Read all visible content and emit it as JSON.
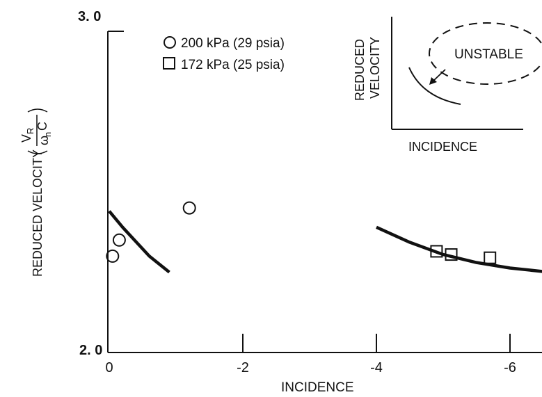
{
  "chart_data": {
    "type": "scatter",
    "xlabel": "INCIDENCE",
    "ylabel_text": "REDUCED VELOCITY",
    "ylabel_formula": {
      "numerator": "V",
      "numerator_sub": "R",
      "denominator": "ω",
      "denominator_sub": "n",
      "denominator_tail": "C"
    },
    "xlim": [
      0,
      -6.5
    ],
    "ylim": [
      2.0,
      3.0
    ],
    "x_ticks": [
      {
        "value": 0,
        "label": "0"
      },
      {
        "value": -2,
        "label": "-2"
      },
      {
        "value": -4,
        "label": "-4"
      },
      {
        "value": -6,
        "label": "-6"
      }
    ],
    "y_ticks": [
      {
        "value": 2.0,
        "label": "2. 0"
      },
      {
        "value": 3.0,
        "label": "3. 0"
      }
    ],
    "series": [
      {
        "name": "200 kPa (29 psia)",
        "marker": "circle",
        "points": [
          {
            "x": -0.05,
            "y": 2.3
          },
          {
            "x": -0.15,
            "y": 2.35
          },
          {
            "x": -1.2,
            "y": 2.45
          }
        ]
      },
      {
        "name": "172 kPa (25 psia)",
        "marker": "square",
        "points": [
          {
            "x": -4.9,
            "y": 2.315
          },
          {
            "x": -5.12,
            "y": 2.305
          },
          {
            "x": -5.7,
            "y": 2.295
          }
        ]
      }
    ],
    "curves": [
      {
        "points": [
          [
            0,
            2.44
          ],
          [
            -0.2,
            2.39
          ],
          [
            -0.4,
            2.345
          ],
          [
            -0.6,
            2.3
          ],
          [
            -0.9,
            2.25
          ]
        ]
      },
      {
        "points": [
          [
            -4.0,
            2.39
          ],
          [
            -4.5,
            2.343
          ],
          [
            -5.0,
            2.305
          ],
          [
            -5.5,
            2.28
          ],
          [
            -6.0,
            2.263
          ],
          [
            -6.5,
            2.252
          ]
        ]
      }
    ],
    "inset": {
      "ylabel_line1": "REDUCED",
      "ylabel_line2": "VELOCITY",
      "xlabel": "INCIDENCE",
      "region_label": "UNSTABLE"
    }
  },
  "colors": {
    "ink": "#111111",
    "background": "#ffffff"
  }
}
